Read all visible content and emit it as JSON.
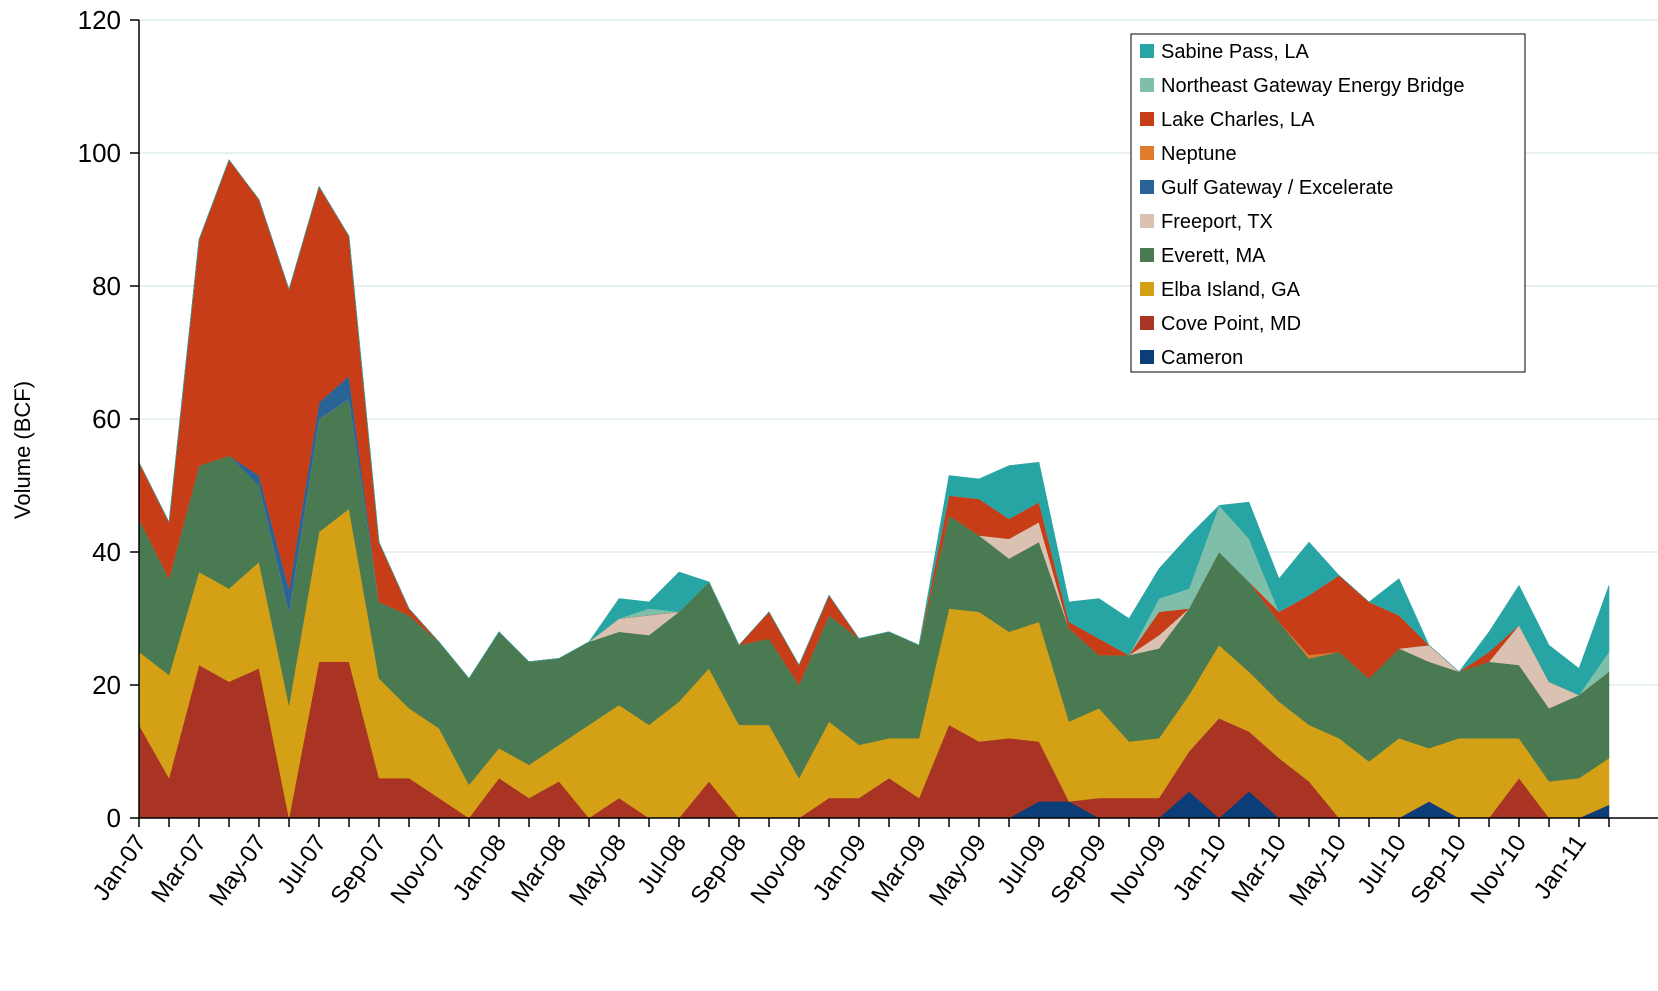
{
  "chart_data": {
    "type": "area",
    "stacked": true,
    "title": "",
    "xlabel": "",
    "ylabel": "Volume (BCF)",
    "ylim": [
      0,
      120
    ],
    "yticks": [
      "0",
      "20",
      "40",
      "60",
      "80",
      "100",
      "120"
    ],
    "grid": true,
    "legend_position": "top-right",
    "categories": [
      "Jan-07",
      "Feb-07",
      "Mar-07",
      "Apr-07",
      "May-07",
      "Jun-07",
      "Jul-07",
      "Aug-07",
      "Sep-07",
      "Oct-07",
      "Nov-07",
      "Dec-07",
      "Jan-08",
      "Feb-08",
      "Mar-08",
      "Apr-08",
      "May-08",
      "Jun-08",
      "Jul-08",
      "Aug-08",
      "Sep-08",
      "Oct-08",
      "Nov-08",
      "Dec-08",
      "Jan-09",
      "Feb-09",
      "Mar-09",
      "Apr-09",
      "May-09",
      "Jun-09",
      "Jul-09",
      "Aug-09",
      "Sep-09",
      "Oct-09",
      "Nov-09",
      "Dec-09",
      "Jan-10",
      "Feb-10",
      "Mar-10",
      "Apr-10",
      "May-10",
      "Jun-10",
      "Jul-10",
      "Aug-10",
      "Sep-10",
      "Oct-10",
      "Nov-10",
      "Dec-10",
      "Jan-11",
      "Feb-11"
    ],
    "x_tick_labels": [
      "Jan-07",
      "Mar-07",
      "May-07",
      "Jul-07",
      "Sep-07",
      "Nov-07",
      "Jan-08",
      "Mar-08",
      "May-08",
      "Jul-08",
      "Sep-08",
      "Nov-08",
      "Jan-09",
      "Mar-09",
      "May-09",
      "Jul-09",
      "Sep-09",
      "Nov-09",
      "Jan-10",
      "Mar-10",
      "May-10",
      "Jul-10",
      "Sep-10",
      "Nov-10",
      "Jan-11"
    ],
    "series": [
      {
        "name": "Cameron",
        "color": "#0b3d78",
        "values": [
          0,
          0,
          0,
          0,
          0,
          0,
          0,
          0,
          0,
          0,
          0,
          0,
          0,
          0,
          0,
          0,
          0,
          0,
          0,
          0,
          0,
          0,
          0,
          0,
          0,
          0,
          0,
          0,
          0,
          0,
          2.5,
          2.5,
          0,
          0,
          0,
          4,
          0,
          4,
          0,
          0,
          0,
          0,
          0,
          2.5,
          0,
          0,
          0,
          0,
          0,
          2
        ]
      },
      {
        "name": "Cove Point, MD",
        "color": "#a93424",
        "values": [
          14,
          6,
          23,
          20.5,
          22.5,
          0,
          23.5,
          23.5,
          6,
          6,
          3,
          0,
          6,
          3,
          5.5,
          0,
          3,
          0,
          0,
          5.5,
          0,
          0,
          0,
          3,
          3,
          6,
          3,
          14,
          11.5,
          12,
          9,
          0,
          3,
          3,
          3,
          6,
          15,
          9,
          9,
          5.5,
          0,
          0,
          0,
          0,
          0,
          0,
          6,
          0,
          0,
          0
        ]
      },
      {
        "name": "Elba Island, GA",
        "color": "#d4a016",
        "values": [
          11,
          15.5,
          14,
          14,
          16,
          17,
          19.5,
          23,
          15,
          10.5,
          10.5,
          5,
          4.5,
          5,
          5.5,
          14,
          14,
          14,
          17.5,
          17,
          14,
          14,
          6,
          11.5,
          8,
          6,
          9,
          17.5,
          19.5,
          16,
          18,
          12,
          13.5,
          8.5,
          9,
          8.5,
          11,
          9,
          8.5,
          8.5,
          12,
          8.5,
          12,
          8,
          12,
          12,
          6,
          5.5,
          6,
          7
        ]
      },
      {
        "name": "Everett, MA",
        "color": "#4a7a52",
        "values": [
          20,
          14.5,
          16,
          20,
          11.5,
          14,
          17,
          16.5,
          11.5,
          14,
          13,
          16,
          17.5,
          15.5,
          13,
          12.5,
          11,
          13.5,
          13.5,
          13,
          12,
          13,
          14,
          16,
          16,
          16,
          14,
          14,
          11.5,
          11,
          12,
          14,
          8,
          13,
          13.5,
          13,
          14,
          13.5,
          12,
          10,
          13,
          12.5,
          13.5,
          13,
          10,
          11.5,
          11,
          11,
          12.5,
          13
        ]
      },
      {
        "name": "Freeport, TX",
        "color": "#dbc1b2",
        "values": [
          0,
          0,
          0,
          0,
          0,
          0,
          0,
          0,
          0,
          0,
          0,
          0,
          0,
          0,
          0,
          0,
          2,
          3,
          0,
          0,
          0,
          0,
          0,
          0,
          0,
          0,
          0,
          0,
          0,
          3,
          3,
          0,
          0,
          0,
          2,
          0,
          0,
          0,
          0,
          0,
          0,
          0,
          0,
          2.5,
          0,
          0,
          6,
          4,
          0,
          0
        ]
      },
      {
        "name": "Gulf Gateway / Excelerate",
        "color": "#2a6395",
        "values": [
          0,
          0,
          0,
          0,
          1.5,
          3.5,
          2.5,
          3.5,
          0,
          0,
          0,
          0,
          0,
          0,
          0,
          0,
          0,
          0,
          0,
          0,
          0,
          0,
          0,
          0,
          0,
          0,
          0,
          0,
          0,
          0,
          0,
          0,
          0,
          0,
          0,
          0,
          0,
          0,
          0,
          0,
          0,
          0,
          0,
          0,
          0,
          0,
          0,
          0,
          0,
          0
        ]
      },
      {
        "name": "Neptune",
        "color": "#e07b2c",
        "values": [
          0,
          0,
          0,
          0,
          0,
          0,
          0,
          0,
          0,
          0,
          0,
          0,
          0,
          0,
          0,
          0,
          0,
          0,
          0,
          0,
          0,
          0,
          0,
          0,
          0,
          0,
          0,
          0,
          0,
          0,
          0,
          0,
          0,
          0,
          0,
          0,
          0,
          0,
          0,
          0.5,
          0,
          0,
          0,
          0,
          0,
          0,
          0,
          0,
          0,
          0
        ]
      },
      {
        "name": "Lake Charles, LA",
        "color": "#c63d17",
        "values": [
          8.5,
          8.5,
          34,
          44.5,
          41.5,
          45,
          32.5,
          21,
          9,
          1,
          0,
          0,
          0,
          0,
          0,
          0,
          0,
          0,
          0,
          0,
          0,
          4,
          3,
          3,
          0,
          0,
          0,
          3,
          5.5,
          3,
          3,
          1,
          2.5,
          0,
          3.5,
          0,
          0,
          0,
          1.5,
          9,
          11.5,
          11.5,
          5,
          0,
          0,
          1.5,
          0,
          0,
          0,
          0
        ]
      },
      {
        "name": "Northeast Gateway Energy Bridge",
        "color": "#7fbfa9",
        "values": [
          0,
          0,
          0,
          0,
          0,
          0,
          0,
          0,
          0,
          0,
          0,
          0,
          0,
          0,
          0,
          0,
          0,
          1,
          0,
          0,
          0,
          0,
          0,
          0,
          0,
          0,
          0,
          0,
          0,
          0,
          0,
          0,
          0,
          0,
          2,
          3,
          7,
          6.5,
          0,
          0,
          0,
          0,
          0,
          0,
          0,
          0,
          0,
          0,
          0,
          3
        ]
      },
      {
        "name": "Sabine Pass, LA",
        "color": "#26a5a4",
        "values": [
          0,
          0,
          0,
          0,
          0,
          0,
          0,
          0,
          0,
          0,
          0,
          0,
          0,
          0,
          0,
          0,
          3,
          1,
          6,
          0,
          0,
          0,
          0,
          0,
          0,
          0,
          0,
          3,
          3,
          8,
          6,
          3,
          6,
          5.5,
          4.5,
          8,
          0,
          5.5,
          5,
          8,
          0,
          0,
          5.5,
          0,
          0,
          3,
          6,
          5.5,
          4,
          10
        ]
      }
    ]
  }
}
